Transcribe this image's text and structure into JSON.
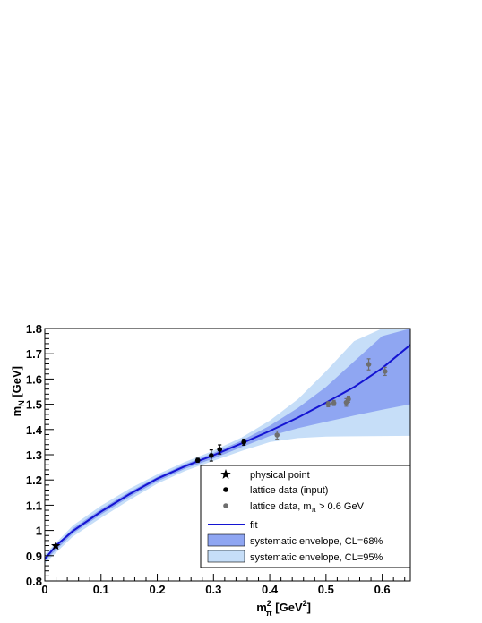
{
  "chart_data": {
    "type": "scatter",
    "title": "",
    "xlabel": {
      "main": "m",
      "sup": "2",
      "sub": "π",
      "unit_pre": "[GeV",
      "unit_sup": "2",
      "unit_post": "]"
    },
    "ylabel": {
      "main": "m",
      "sub": "N",
      "unit": "[GeV]"
    },
    "xlim": [
      0,
      0.65
    ],
    "ylim": [
      0.8,
      1.8
    ],
    "xticks": [
      "0",
      "0.1",
      "0.2",
      "0.3",
      "0.4",
      "0.5",
      "0.6"
    ],
    "yticks": [
      "0.8",
      "0.9",
      "1",
      "1.1",
      "1.2",
      "1.3",
      "1.4",
      "1.5",
      "1.6",
      "1.7",
      "1.8"
    ],
    "grid": false,
    "legend_position": "bottom-right",
    "legend": {
      "physical_point": "physical point",
      "lattice_input": "lattice data (input)",
      "lattice_high": "lattice data, m",
      "lattice_high_sub": "π",
      "lattice_high_tail": " > 0.6 GeV",
      "fit": "fit",
      "band68": "systematic envelope, CL=68%",
      "band95": "systematic envelope, CL=95%"
    },
    "colors": {
      "fit": "#1414d2",
      "band68": "#8fa6f2",
      "band95": "#c6def8",
      "lattice_input": "#000000",
      "lattice_high": "#6e6e6e",
      "physical": "#000000"
    },
    "series": [
      {
        "name": "physical point",
        "marker": "star",
        "points": [
          {
            "x": 0.0195,
            "y": 0.939
          }
        ]
      },
      {
        "name": "lattice data (input)",
        "marker": "circle",
        "points": [
          {
            "x": 0.272,
            "y": 1.278,
            "err": 0.008
          },
          {
            "x": 0.296,
            "y": 1.297,
            "err": 0.022
          },
          {
            "x": 0.311,
            "y": 1.321,
            "err": 0.018
          },
          {
            "x": 0.354,
            "y": 1.35,
            "err": 0.012
          }
        ]
      },
      {
        "name": "lattice data, m_π > 0.6 GeV",
        "marker": "circle",
        "points": [
          {
            "x": 0.413,
            "y": 1.378,
            "err": 0.016
          },
          {
            "x": 0.504,
            "y": 1.5,
            "err": 0.01
          },
          {
            "x": 0.514,
            "y": 1.505,
            "err": 0.01
          },
          {
            "x": 0.536,
            "y": 1.507,
            "err": 0.015
          },
          {
            "x": 0.54,
            "y": 1.52,
            "err": 0.012
          },
          {
            "x": 0.576,
            "y": 1.658,
            "err": 0.022
          },
          {
            "x": 0.605,
            "y": 1.63,
            "err": 0.016
          }
        ]
      }
    ],
    "fit": {
      "x": [
        0,
        0.02,
        0.05,
        0.1,
        0.15,
        0.2,
        0.25,
        0.3,
        0.35,
        0.4,
        0.45,
        0.5,
        0.55,
        0.6,
        0.65
      ],
      "y": [
        0.887,
        0.94,
        0.998,
        1.075,
        1.143,
        1.205,
        1.255,
        1.298,
        1.345,
        1.394,
        1.447,
        1.506,
        1.568,
        1.643,
        1.735
      ]
    },
    "band68": {
      "x": [
        0,
        0.05,
        0.1,
        0.15,
        0.2,
        0.25,
        0.3,
        0.35,
        0.4,
        0.45,
        0.5,
        0.55,
        0.6,
        0.65
      ],
      "upper": [
        0.895,
        1.008,
        1.085,
        1.152,
        1.212,
        1.263,
        1.307,
        1.356,
        1.415,
        1.485,
        1.568,
        1.67,
        1.77,
        1.8
      ],
      "lower": [
        0.879,
        0.988,
        1.063,
        1.132,
        1.194,
        1.245,
        1.285,
        1.33,
        1.374,
        1.405,
        1.43,
        1.455,
        1.478,
        1.5
      ]
    },
    "band95": {
      "x": [
        0,
        0.05,
        0.1,
        0.15,
        0.2,
        0.25,
        0.3,
        0.35,
        0.4,
        0.45,
        0.5,
        0.55,
        0.6,
        0.65
      ],
      "upper": [
        0.905,
        1.02,
        1.098,
        1.165,
        1.222,
        1.272,
        1.316,
        1.368,
        1.435,
        1.52,
        1.63,
        1.75,
        1.8,
        1.8
      ],
      "lower": [
        0.869,
        0.976,
        1.05,
        1.12,
        1.185,
        1.236,
        1.276,
        1.315,
        1.35,
        1.366,
        1.372,
        1.373,
        1.374,
        1.375
      ]
    }
  }
}
